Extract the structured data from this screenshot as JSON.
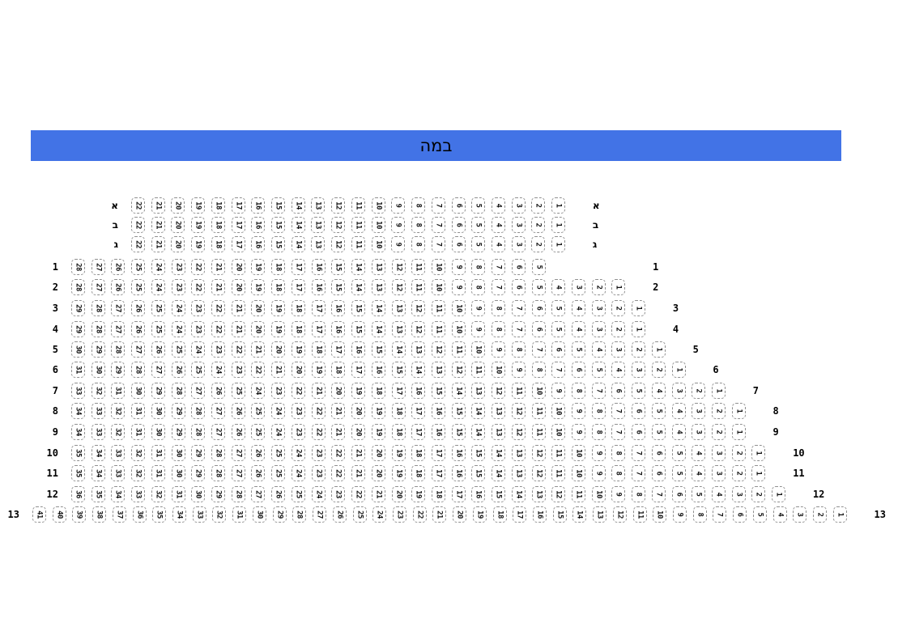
{
  "stage": {
    "label": "במה"
  },
  "colors": {
    "stage_bg": "#4273e6",
    "seat_border": "#8f8f8f",
    "seat_number": "#111111",
    "label_text": "#000000"
  },
  "seat_map": {
    "rows": [
      {
        "label": "א",
        "seats": [
          22,
          21,
          20,
          19,
          18,
          17,
          16,
          15,
          14,
          13,
          12,
          11,
          10,
          9,
          8,
          7,
          6,
          5,
          4,
          3,
          2,
          1
        ]
      },
      {
        "label": "ב",
        "seats": [
          22,
          21,
          20,
          19,
          18,
          17,
          16,
          15,
          14,
          13,
          12,
          11,
          10,
          9,
          8,
          7,
          6,
          5,
          4,
          3,
          2,
          1
        ]
      },
      {
        "label": "ג",
        "seats": [
          22,
          21,
          20,
          19,
          18,
          17,
          16,
          15,
          14,
          13,
          12,
          11,
          10,
          9,
          8,
          7,
          6,
          5,
          4,
          3,
          2,
          1
        ]
      },
      {
        "label": "1",
        "seats": [
          28,
          27,
          26,
          25,
          24,
          23,
          22,
          21,
          20,
          19,
          18,
          17,
          16,
          15,
          14,
          13,
          12,
          11,
          10,
          9,
          8,
          7,
          6,
          5
        ]
      },
      {
        "label": "2",
        "seats": [
          28,
          27,
          26,
          25,
          24,
          23,
          22,
          21,
          20,
          19,
          18,
          17,
          16,
          15,
          14,
          13,
          12,
          11,
          10,
          9,
          8,
          7,
          6,
          5,
          4,
          3,
          2,
          1
        ]
      },
      {
        "label": "3",
        "seats": [
          29,
          28,
          27,
          26,
          25,
          24,
          23,
          22,
          21,
          20,
          19,
          18,
          17,
          16,
          15,
          14,
          13,
          12,
          11,
          10,
          9,
          8,
          7,
          6,
          5,
          4,
          3,
          2,
          1
        ]
      },
      {
        "label": "4",
        "seats": [
          29,
          28,
          27,
          26,
          25,
          24,
          23,
          22,
          21,
          20,
          19,
          18,
          17,
          16,
          15,
          14,
          13,
          12,
          11,
          10,
          9,
          8,
          7,
          6,
          5,
          4,
          3,
          2,
          1
        ]
      },
      {
        "label": "5",
        "seats": [
          30,
          29,
          28,
          27,
          26,
          25,
          24,
          23,
          22,
          21,
          20,
          19,
          18,
          17,
          16,
          15,
          14,
          13,
          12,
          11,
          10,
          9,
          8,
          7,
          6,
          5,
          4,
          3,
          2,
          1
        ]
      },
      {
        "label": "6",
        "seats": [
          31,
          30,
          29,
          28,
          27,
          26,
          25,
          24,
          23,
          22,
          21,
          20,
          19,
          18,
          17,
          16,
          15,
          14,
          13,
          12,
          11,
          10,
          9,
          8,
          7,
          6,
          5,
          4,
          3,
          2,
          1
        ]
      },
      {
        "label": "7",
        "seats": [
          33,
          32,
          31,
          30,
          29,
          28,
          27,
          26,
          25,
          24,
          23,
          22,
          21,
          20,
          19,
          18,
          17,
          16,
          15,
          14,
          13,
          12,
          11,
          10,
          9,
          8,
          7,
          6,
          5,
          4,
          3,
          2,
          1
        ]
      },
      {
        "label": "8",
        "seats": [
          34,
          33,
          32,
          31,
          30,
          29,
          28,
          27,
          26,
          25,
          24,
          23,
          22,
          21,
          20,
          19,
          18,
          17,
          16,
          15,
          14,
          13,
          12,
          11,
          10,
          9,
          8,
          7,
          6,
          5,
          4,
          3,
          2,
          1
        ]
      },
      {
        "label": "9",
        "seats": [
          34,
          33,
          32,
          31,
          30,
          29,
          28,
          27,
          26,
          25,
          24,
          23,
          22,
          21,
          20,
          19,
          18,
          17,
          16,
          15,
          14,
          13,
          12,
          11,
          10,
          9,
          8,
          7,
          6,
          5,
          4,
          3,
          2,
          1
        ]
      },
      {
        "label": "10",
        "seats": [
          35,
          34,
          33,
          32,
          31,
          30,
          29,
          28,
          27,
          26,
          25,
          24,
          23,
          22,
          21,
          20,
          19,
          18,
          17,
          16,
          15,
          14,
          13,
          12,
          11,
          10,
          9,
          8,
          7,
          6,
          5,
          4,
          3,
          2,
          1
        ]
      },
      {
        "label": "11",
        "seats": [
          35,
          34,
          33,
          32,
          31,
          30,
          29,
          28,
          27,
          26,
          25,
          24,
          23,
          22,
          21,
          20,
          19,
          18,
          17,
          16,
          15,
          14,
          13,
          12,
          11,
          10,
          9,
          8,
          7,
          6,
          5,
          4,
          3,
          2,
          1
        ]
      },
      {
        "label": "12",
        "seats": [
          36,
          35,
          34,
          33,
          32,
          31,
          30,
          29,
          28,
          27,
          26,
          25,
          24,
          23,
          22,
          21,
          20,
          19,
          18,
          17,
          16,
          15,
          14,
          13,
          12,
          11,
          10,
          9,
          8,
          7,
          6,
          5,
          4,
          3,
          2,
          1
        ]
      },
      {
        "label": "13",
        "seats": [
          41,
          40,
          39,
          38,
          37,
          36,
          35,
          34,
          33,
          32,
          31,
          30,
          29,
          28,
          27,
          26,
          25,
          24,
          23,
          22,
          21,
          20,
          19,
          18,
          17,
          16,
          15,
          14,
          13,
          12,
          11,
          10,
          9,
          8,
          7,
          6,
          5,
          4,
          3,
          2,
          1
        ]
      }
    ]
  }
}
